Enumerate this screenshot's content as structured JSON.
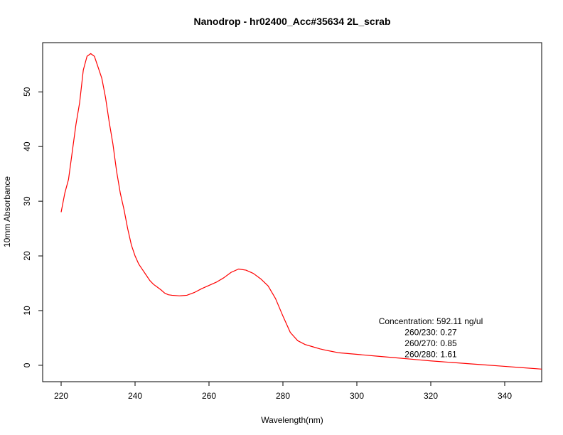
{
  "chart_data": {
    "type": "line",
    "title": "Nanodrop - hr02400_Acc#35634 2L_scrab",
    "xlabel": "Wavelength(nm)",
    "ylabel": "10mm Absorbance",
    "xlim": [
      215,
      350
    ],
    "ylim": [
      -3,
      59
    ],
    "x_ticks": [
      220,
      240,
      260,
      280,
      300,
      320,
      340
    ],
    "y_ticks": [
      0,
      10,
      20,
      30,
      40,
      50
    ],
    "grid": false,
    "series": [
      {
        "color": "#ff0000",
        "x": [
          220,
          221,
          222,
          223,
          224,
          225,
          226,
          227,
          228,
          229,
          230,
          231,
          232,
          233,
          234,
          235,
          236,
          237,
          238,
          239,
          240,
          241,
          242,
          243,
          244,
          245,
          246,
          247,
          248,
          249,
          250,
          252,
          254,
          256,
          258,
          260,
          262,
          264,
          266,
          268,
          270,
          272,
          274,
          276,
          278,
          280,
          282,
          284,
          286,
          288,
          290,
          292,
          295,
          300,
          305,
          310,
          315,
          320,
          325,
          330,
          335,
          340,
          345,
          350
        ],
        "y": [
          28.0,
          31.5,
          34.0,
          39.0,
          44.0,
          48.0,
          54.0,
          56.5,
          57.0,
          56.5,
          54.5,
          52.5,
          49.0,
          44.5,
          40.5,
          35.5,
          31.5,
          28.5,
          25.0,
          22.0,
          20.0,
          18.5,
          17.5,
          16.5,
          15.5,
          14.8,
          14.3,
          13.8,
          13.2,
          12.9,
          12.8,
          12.7,
          12.8,
          13.3,
          14.0,
          14.6,
          15.2,
          16.0,
          17.0,
          17.6,
          17.4,
          16.8,
          15.8,
          14.5,
          12.2,
          9.0,
          6.0,
          4.5,
          3.8,
          3.4,
          3.0,
          2.7,
          2.3,
          2.0,
          1.7,
          1.4,
          1.1,
          0.8,
          0.55,
          0.3,
          0.05,
          -0.2,
          -0.45,
          -0.7
        ]
      }
    ],
    "annotations": [
      "Concentration: 592.11 ng/ul",
      "260/230: 0.27",
      "260/270: 0.85",
      "260/280: 1.61"
    ]
  }
}
